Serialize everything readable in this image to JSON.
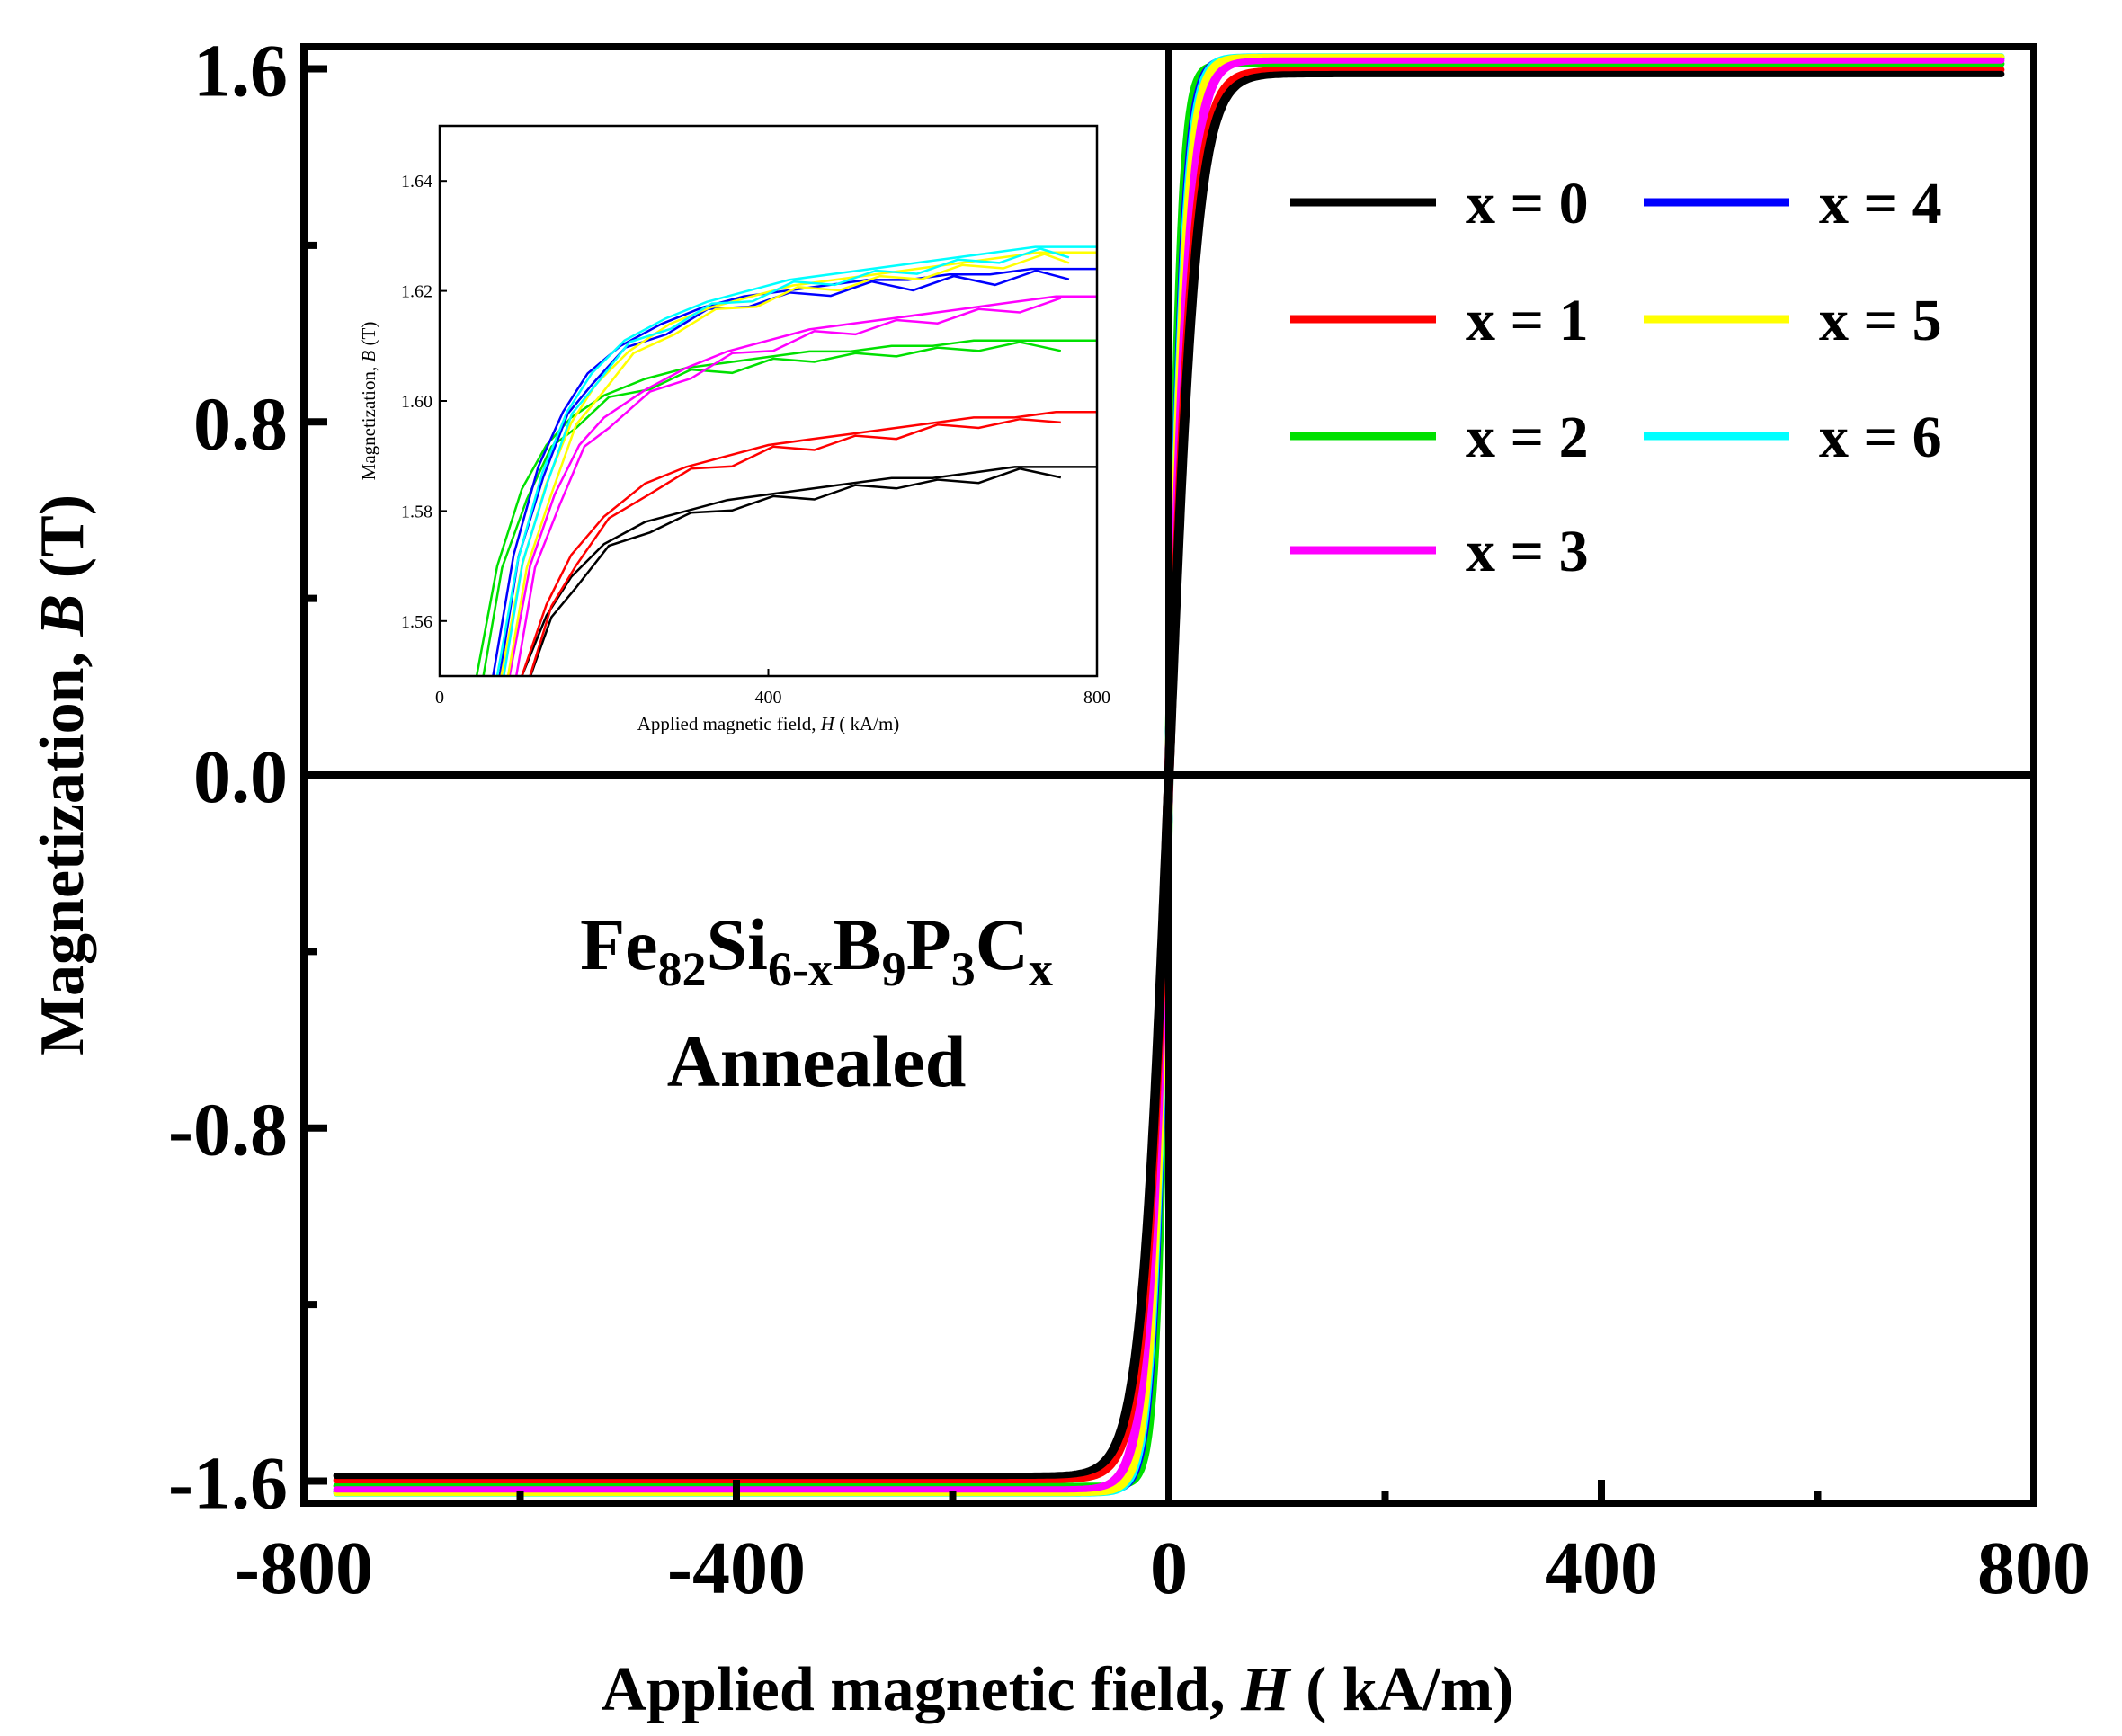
{
  "chart_data": {
    "type": "line",
    "main": {
      "xlabel": "Applied magnetic field, H ( kA/m)",
      "xlabel_prefix": "Applied magnetic field, ",
      "xlabel_var": "H",
      "xlabel_suffix": " ( kA/m)",
      "ylabel_prefix": "Magnetization, ",
      "ylabel_var": "B",
      "ylabel_suffix": " (T)",
      "xlim": [
        -800,
        800
      ],
      "ylim": [
        -1.65,
        1.65
      ],
      "xticks": [
        -800,
        -400,
        0,
        400,
        800
      ],
      "xtick_labels": [
        "-800",
        "-400",
        "0",
        "400",
        "800"
      ],
      "yticks": [
        -1.6,
        -0.8,
        0.0,
        0.8,
        1.6
      ],
      "ytick_labels": [
        "-1.6",
        "-0.8",
        "0.0",
        "0.8",
        "1.6"
      ]
    },
    "annotation": {
      "line1_parts": [
        {
          "text": "Fe",
          "sub": false
        },
        {
          "text": "82",
          "sub": true
        },
        {
          "text": "Si",
          "sub": false
        },
        {
          "text": "6-x",
          "sub": true
        },
        {
          "text": "B",
          "sub": false
        },
        {
          "text": "9",
          "sub": true
        },
        {
          "text": "P",
          "sub": false
        },
        {
          "text": "3",
          "sub": true
        },
        {
          "text": "C",
          "sub": false
        },
        {
          "text": "x",
          "sub": true
        }
      ],
      "line2": "Annealed"
    },
    "legend_position": "top-right",
    "series": [
      {
        "name": "x = 0",
        "color": "#000000",
        "Ms": 1.588,
        "Hk": 26
      },
      {
        "name": "x = 1",
        "color": "#ff0000",
        "Ms": 1.598,
        "Hk": 24
      },
      {
        "name": "x = 2",
        "color": "#00e000",
        "Ms": 1.611,
        "Hk": 12
      },
      {
        "name": "x = 3",
        "color": "#ff00ff",
        "Ms": 1.619,
        "Hk": 20
      },
      {
        "name": "x = 4",
        "color": "#0000ff",
        "Ms": 1.624,
        "Hk": 15
      },
      {
        "name": "x = 5",
        "color": "#ffff00",
        "Ms": 1.627,
        "Hk": 17
      },
      {
        "name": "x = 6",
        "color": "#00ffff",
        "Ms": 1.628,
        "Hk": 16
      }
    ],
    "inset": {
      "xlabel_prefix": "Applied magnetic field, ",
      "xlabel_var": "H",
      "xlabel_suffix": " ( kA/m)",
      "ylabel_prefix": "Magnetization, ",
      "ylabel_var": "B",
      "ylabel_suffix": " (T)",
      "xlim": [
        0,
        800
      ],
      "ylim": [
        1.55,
        1.65
      ],
      "xticks": [
        0,
        400,
        800
      ],
      "xtick_labels": [
        "0",
        "400",
        "800"
      ],
      "yticks": [
        1.56,
        1.58,
        1.6,
        1.62,
        1.64
      ],
      "ytick_labels": [
        "1.56",
        "1.58",
        "1.60",
        "1.62",
        "1.64"
      ],
      "series": [
        {
          "name": "x = 0",
          "x": [
            100,
            130,
            160,
            200,
            250,
            300,
            350,
            400,
            450,
            500,
            550,
            600,
            650,
            700,
            750,
            800
          ],
          "y": [
            1.55,
            1.561,
            1.568,
            1.574,
            1.578,
            1.58,
            1.582,
            1.583,
            1.584,
            1.585,
            1.586,
            1.586,
            1.587,
            1.588,
            1.588,
            1.588
          ]
        },
        {
          "name": "x = 1",
          "x": [
            100,
            130,
            160,
            200,
            250,
            300,
            350,
            400,
            450,
            500,
            550,
            600,
            650,
            700,
            750,
            800
          ],
          "y": [
            1.55,
            1.563,
            1.572,
            1.579,
            1.585,
            1.588,
            1.59,
            1.592,
            1.593,
            1.594,
            1.595,
            1.596,
            1.597,
            1.597,
            1.598,
            1.598
          ]
        },
        {
          "name": "x = 2",
          "x": [
            45,
            70,
            100,
            130,
            160,
            200,
            250,
            300,
            350,
            400,
            450,
            500,
            550,
            600,
            650,
            700,
            750,
            800
          ],
          "y": [
            1.55,
            1.57,
            1.584,
            1.592,
            1.597,
            1.601,
            1.604,
            1.606,
            1.607,
            1.608,
            1.609,
            1.609,
            1.61,
            1.61,
            1.611,
            1.611,
            1.611,
            1.611
          ]
        },
        {
          "name": "x = 3",
          "x": [
            85,
            110,
            140,
            170,
            200,
            250,
            300,
            350,
            400,
            450,
            500,
            550,
            600,
            650,
            700,
            750,
            800
          ],
          "y": [
            1.55,
            1.57,
            1.583,
            1.592,
            1.597,
            1.602,
            1.606,
            1.609,
            1.611,
            1.613,
            1.614,
            1.615,
            1.616,
            1.617,
            1.618,
            1.619,
            1.619
          ]
        },
        {
          "name": "x = 4",
          "x": [
            65,
            90,
            120,
            150,
            180,
            220,
            270,
            320,
            370,
            420,
            470,
            520,
            570,
            620,
            670,
            720,
            760,
            800
          ],
          "y": [
            1.55,
            1.572,
            1.588,
            1.598,
            1.605,
            1.61,
            1.614,
            1.617,
            1.619,
            1.62,
            1.621,
            1.622,
            1.622,
            1.623,
            1.623,
            1.624,
            1.624,
            1.624
          ]
        },
        {
          "name": "x = 5",
          "x": [
            75,
            100,
            130,
            160,
            190,
            230,
            280,
            330,
            380,
            430,
            480,
            530,
            580,
            630,
            680,
            730,
            760,
            800
          ],
          "y": [
            1.55,
            1.57,
            1.585,
            1.596,
            1.603,
            1.609,
            1.614,
            1.617,
            1.619,
            1.621,
            1.622,
            1.623,
            1.624,
            1.625,
            1.626,
            1.627,
            1.627,
            1.627
          ]
        },
        {
          "name": "x = 6",
          "x": [
            70,
            95,
            125,
            155,
            185,
            225,
            275,
            325,
            375,
            425,
            475,
            525,
            575,
            625,
            675,
            725,
            760,
            800
          ],
          "y": [
            1.55,
            1.571,
            1.587,
            1.598,
            1.605,
            1.611,
            1.615,
            1.618,
            1.62,
            1.622,
            1.623,
            1.624,
            1.625,
            1.626,
            1.627,
            1.628,
            1.628,
            1.628
          ]
        }
      ]
    }
  }
}
